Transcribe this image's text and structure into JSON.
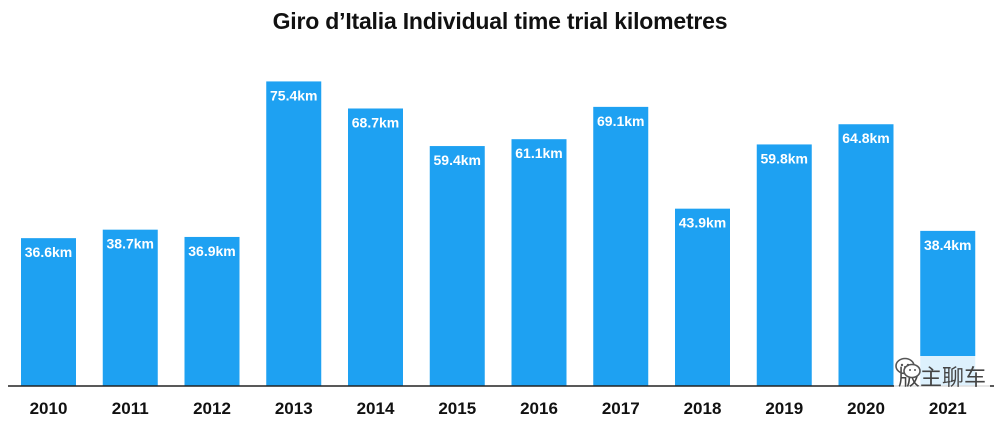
{
  "chart_data": {
    "type": "bar",
    "title": "Giro d’Italia Individual time trial kilometres",
    "categories": [
      "2010",
      "2011",
      "2012",
      "2013",
      "2014",
      "2015",
      "2016",
      "2017",
      "2018",
      "2019",
      "2020",
      "2021"
    ],
    "values": [
      36.6,
      38.7,
      36.9,
      75.4,
      68.7,
      59.4,
      61.1,
      69.1,
      43.9,
      59.8,
      64.8,
      38.4
    ],
    "value_labels": [
      "36.6km",
      "38.7km",
      "36.9km",
      "75.4km",
      "68.7km",
      "59.4km",
      "61.1km",
      "69.1km",
      "43.9km",
      "59.8km",
      "64.8km",
      "38.4km"
    ],
    "xlabel": "",
    "ylabel": "",
    "ylim": [
      0,
      76
    ],
    "grid": false,
    "legend": "none",
    "bar_color": "#1ea1f2"
  },
  "watermark": {
    "text": "版主聊车",
    "icon": "wechat-icon"
  }
}
